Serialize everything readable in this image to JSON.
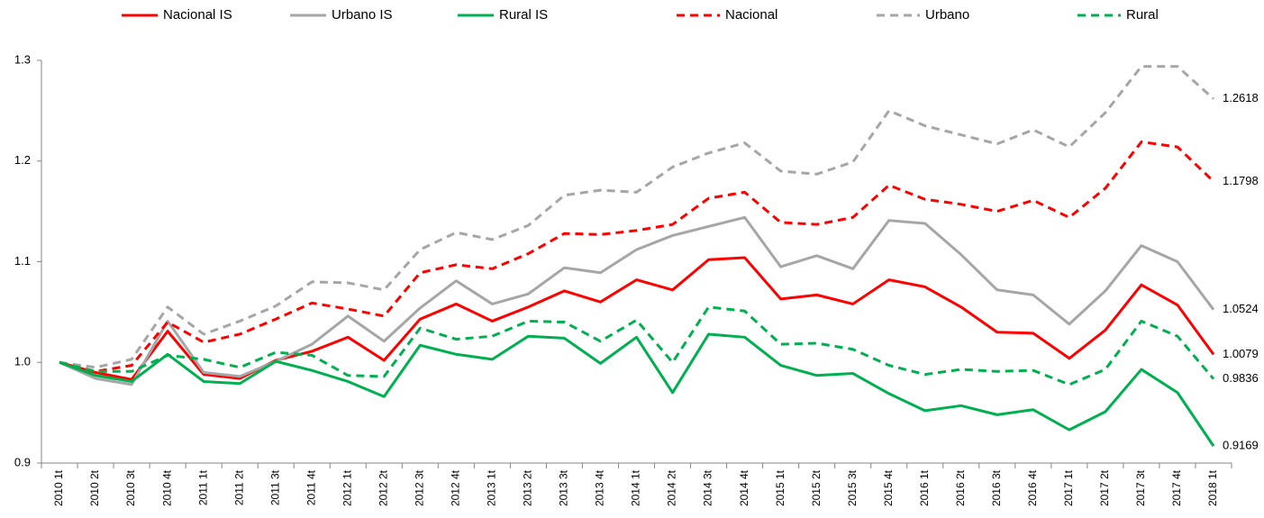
{
  "chart_data": {
    "type": "line",
    "categories": [
      "2010 1t",
      "2010 2t",
      "2010 3t",
      "2010 4t",
      "2011 1t",
      "2011 2t",
      "2011 3t",
      "2011 4t",
      "2012 1t",
      "2012 2t",
      "2012 3t",
      "2012 4t",
      "2013 1t",
      "2013 2t",
      "2013 3t",
      "2013 4t",
      "2014 1t",
      "2014 2t",
      "2014 3t",
      "2014 4t",
      "2015 1t",
      "2015 2t",
      "2015 3t",
      "2015 4t",
      "2016 1t",
      "2016 2t",
      "2016 3t",
      "2016 4t",
      "2017 1t",
      "2017 2t",
      "2017 3t",
      "2017 4t",
      "2018 1t"
    ],
    "series": [
      {
        "name": "Nacional IS",
        "color": "#ff0000",
        "dash": false,
        "values": [
          1.0,
          0.99,
          0.983,
          1.031,
          0.988,
          0.984,
          1.002,
          1.011,
          1.025,
          1.002,
          1.043,
          1.058,
          1.041,
          1.055,
          1.071,
          1.06,
          1.082,
          1.072,
          1.102,
          1.104,
          1.063,
          1.067,
          1.058,
          1.082,
          1.075,
          1.055,
          1.03,
          1.029,
          1.004,
          1.032,
          1.077,
          1.057,
          1.0079
        ]
      },
      {
        "name": "Urbano IS",
        "color": "#a6a6a6",
        "dash": false,
        "values": [
          1.0,
          0.984,
          0.978,
          1.041,
          0.99,
          0.986,
          1.001,
          1.018,
          1.046,
          1.021,
          1.054,
          1.081,
          1.058,
          1.068,
          1.094,
          1.089,
          1.112,
          1.126,
          1.135,
          1.144,
          1.095,
          1.106,
          1.093,
          1.141,
          1.138,
          1.107,
          1.072,
          1.067,
          1.038,
          1.071,
          1.116,
          1.1,
          1.0524
        ]
      },
      {
        "name": "Rural IS",
        "color": "#00b050",
        "dash": false,
        "values": [
          1.0,
          0.987,
          0.981,
          1.008,
          0.981,
          0.979,
          1.001,
          0.992,
          0.981,
          0.966,
          1.017,
          1.008,
          1.003,
          1.026,
          1.024,
          0.999,
          1.025,
          0.97,
          1.028,
          1.025,
          0.997,
          0.987,
          0.989,
          0.969,
          0.952,
          0.957,
          0.948,
          0.953,
          0.933,
          0.951,
          0.993,
          0.97,
          0.9169
        ]
      },
      {
        "name": "Nacional",
        "color": "#ff0000",
        "dash": true,
        "values": [
          1.0,
          0.991,
          0.997,
          1.04,
          1.02,
          1.028,
          1.043,
          1.059,
          1.053,
          1.046,
          1.089,
          1.097,
          1.093,
          1.108,
          1.128,
          1.127,
          1.131,
          1.137,
          1.163,
          1.169,
          1.139,
          1.137,
          1.144,
          1.176,
          1.162,
          1.157,
          1.15,
          1.161,
          1.144,
          1.173,
          1.219,
          1.214,
          1.1798
        ]
      },
      {
        "name": "Urbano",
        "color": "#a6a6a6",
        "dash": true,
        "values": [
          1.0,
          0.995,
          1.003,
          1.055,
          1.028,
          1.041,
          1.056,
          1.08,
          1.079,
          1.072,
          1.112,
          1.129,
          1.122,
          1.136,
          1.166,
          1.171,
          1.169,
          1.194,
          1.208,
          1.218,
          1.19,
          1.187,
          1.199,
          1.25,
          1.235,
          1.226,
          1.217,
          1.231,
          1.214,
          1.248,
          1.294,
          1.294,
          1.2618
        ]
      },
      {
        "name": "Rural",
        "color": "#00b050",
        "dash": true,
        "values": [
          1.0,
          0.991,
          0.991,
          1.007,
          1.003,
          0.995,
          1.01,
          1.007,
          0.987,
          0.986,
          1.034,
          1.023,
          1.026,
          1.041,
          1.04,
          1.021,
          1.042,
          1.0,
          1.055,
          1.051,
          1.018,
          1.019,
          1.013,
          0.997,
          0.988,
          0.993,
          0.991,
          0.992,
          0.978,
          0.993,
          1.041,
          1.026,
          0.9836
        ]
      }
    ],
    "ylim": [
      0.9,
      1.3
    ],
    "yticks": [
      0.9,
      {
        "value": 1,
        "label": "1.0"
      },
      1.1,
      1.2,
      1.3
    ],
    "grid": false,
    "legend": "top"
  }
}
